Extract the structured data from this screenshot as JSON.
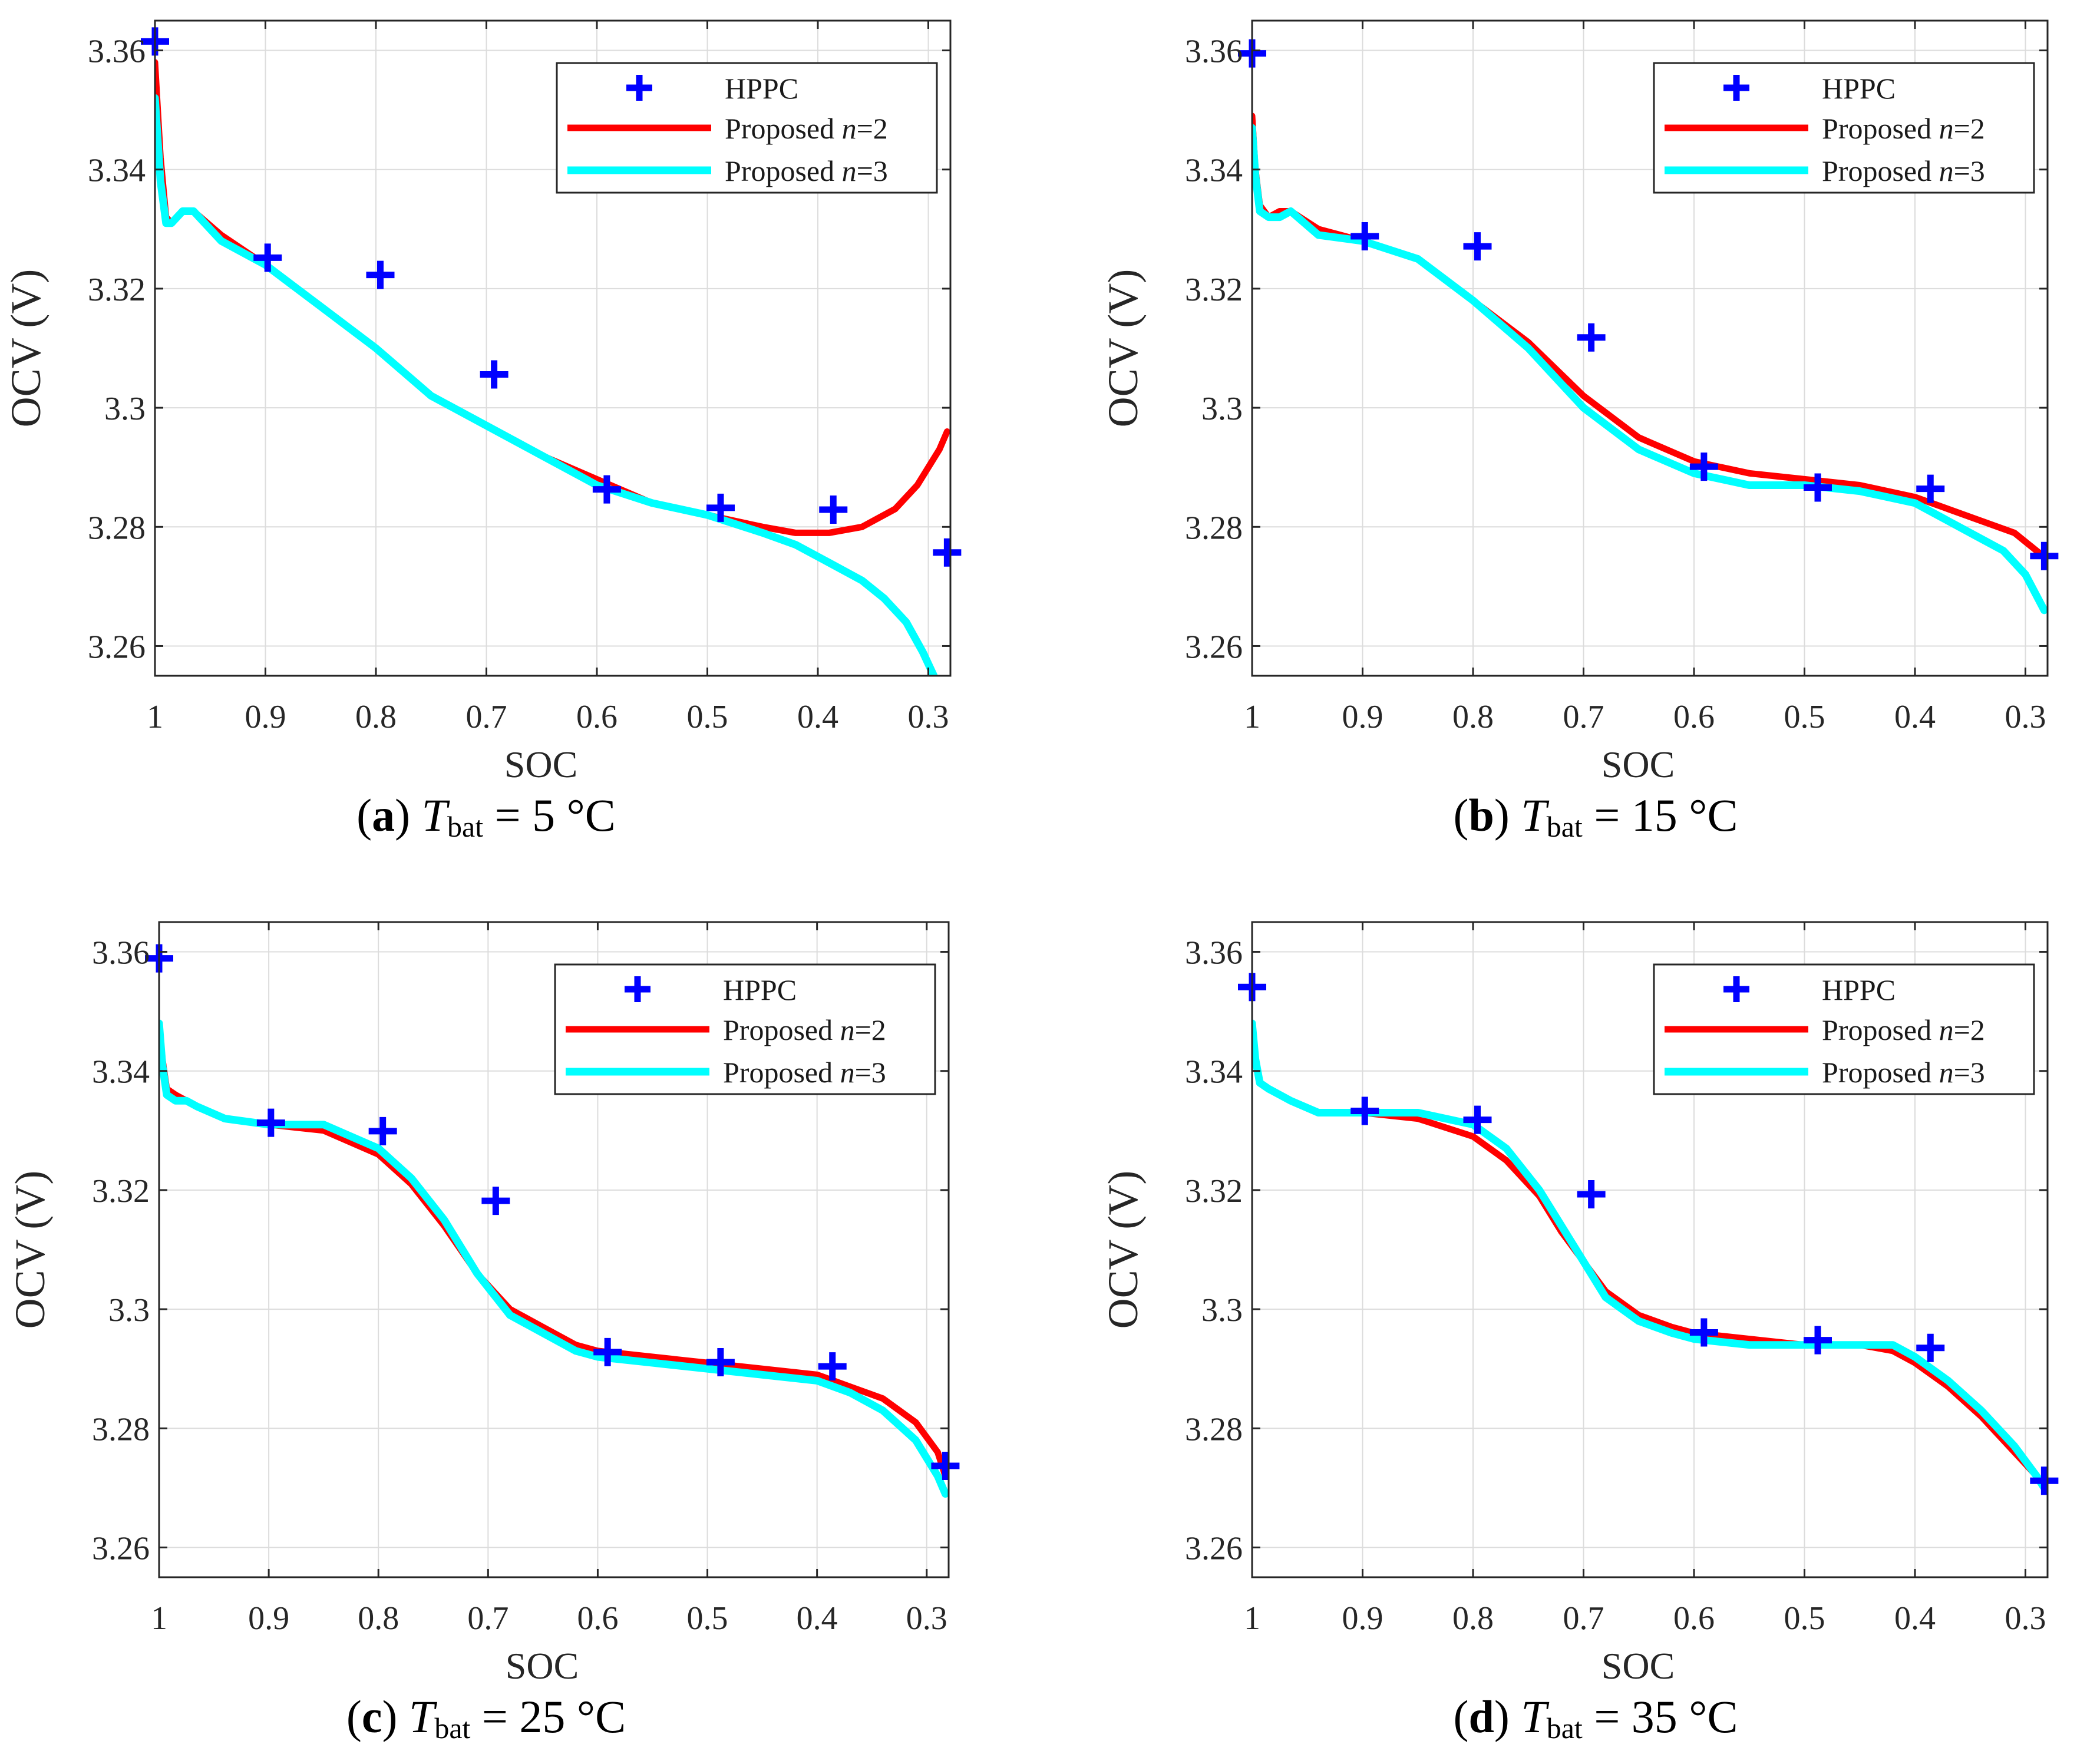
{
  "figure": {
    "domain": "Chart"
  },
  "colors": {
    "hppc": "#0000ff",
    "n2": "#ff0000",
    "n3": "#00ffff",
    "grid": "#dcdcdc",
    "axis": "#262626"
  },
  "chart_data": [
    {
      "type": "line",
      "id": "a",
      "caption": {
        "letter": "a",
        "var": "T",
        "sub": "bat",
        "rest": "= 5 °C"
      },
      "xlabel": "SOC",
      "ylabel": "OCV (V)",
      "xlim": [
        1.0,
        0.28
      ],
      "ylim": [
        3.255,
        3.365
      ],
      "xticks": [
        1,
        0.9,
        0.8,
        0.7,
        0.6,
        0.5,
        0.4,
        0.3
      ],
      "xtick_labels": [
        "1",
        "0.9",
        "0.8",
        "0.7",
        "0.6",
        "0.5",
        "0.4",
        "0.3"
      ],
      "yticks": [
        3.26,
        3.28,
        3.3,
        3.32,
        3.34,
        3.36
      ],
      "ytick_labels": [
        "3.26",
        "3.28",
        "3.3",
        "3.32",
        "3.34",
        "3.36"
      ],
      "legend": {
        "position": "top-right",
        "entries": [
          "HPPC",
          "Proposed n=2",
          "Proposed n=3"
        ]
      },
      "series": [
        {
          "name": "HPPC",
          "kind": "marker",
          "color": "#0000ff",
          "x": [
            1.0,
            0.898,
            0.796,
            0.693,
            0.591,
            0.488,
            0.386,
            0.283
          ],
          "y": [
            3.3615,
            3.3252,
            3.3223,
            3.3056,
            3.2863,
            3.2832,
            3.2829,
            3.2757
          ]
        },
        {
          "name": "Proposed n=2",
          "kind": "line",
          "color": "#ff0000",
          "x": [
            1.0,
            0.995,
            0.99,
            0.985,
            0.975,
            0.965,
            0.94,
            0.9,
            0.85,
            0.8,
            0.75,
            0.7,
            0.65,
            0.6,
            0.55,
            0.5,
            0.45,
            0.42,
            0.39,
            0.36,
            0.33,
            0.31,
            0.29,
            0.283
          ],
          "y": [
            3.358,
            3.342,
            3.332,
            3.331,
            3.333,
            3.333,
            3.329,
            3.324,
            3.317,
            3.31,
            3.302,
            3.297,
            3.292,
            3.288,
            3.284,
            3.282,
            3.28,
            3.279,
            3.279,
            3.28,
            3.283,
            3.287,
            3.293,
            3.296
          ]
        },
        {
          "name": "Proposed n=3",
          "kind": "line",
          "color": "#00ffff",
          "x": [
            1.0,
            0.995,
            0.99,
            0.985,
            0.975,
            0.965,
            0.94,
            0.9,
            0.85,
            0.8,
            0.75,
            0.7,
            0.65,
            0.6,
            0.55,
            0.5,
            0.45,
            0.42,
            0.39,
            0.36,
            0.34,
            0.32,
            0.305,
            0.295
          ],
          "y": [
            3.352,
            3.338,
            3.331,
            3.331,
            3.333,
            3.333,
            3.328,
            3.324,
            3.317,
            3.31,
            3.302,
            3.297,
            3.292,
            3.287,
            3.284,
            3.282,
            3.279,
            3.277,
            3.274,
            3.271,
            3.268,
            3.264,
            3.259,
            3.255
          ]
        }
      ]
    },
    {
      "type": "line",
      "id": "b",
      "caption": {
        "letter": "b",
        "var": "T",
        "sub": "bat",
        "rest": "= 15 °C"
      },
      "xlabel": "SOC",
      "ylabel": "OCV (V)",
      "xlim": [
        1.0,
        0.28
      ],
      "ylim": [
        3.255,
        3.365
      ],
      "xticks": [
        1,
        0.9,
        0.8,
        0.7,
        0.6,
        0.5,
        0.4,
        0.3
      ],
      "xtick_labels": [
        "1",
        "0.9",
        "0.8",
        "0.7",
        "0.6",
        "0.5",
        "0.4",
        "0.3"
      ],
      "yticks": [
        3.26,
        3.28,
        3.3,
        3.32,
        3.34,
        3.36
      ],
      "ytick_labels": [
        "3.26",
        "3.28",
        "3.3",
        "3.32",
        "3.34",
        "3.36"
      ],
      "legend": {
        "position": "top-right",
        "entries": [
          "HPPC",
          "Proposed n=2",
          "Proposed n=3"
        ]
      },
      "series": [
        {
          "name": "HPPC",
          "kind": "marker",
          "color": "#0000ff",
          "x": [
            1.0,
            0.898,
            0.796,
            0.693,
            0.591,
            0.488,
            0.386,
            0.283
          ],
          "y": [
            3.3595,
            3.3288,
            3.3271,
            3.3118,
            3.2901,
            3.2866,
            3.2864,
            3.2751
          ]
        },
        {
          "name": "Proposed n=2",
          "kind": "line",
          "color": "#ff0000",
          "x": [
            1.0,
            0.997,
            0.993,
            0.985,
            0.975,
            0.965,
            0.94,
            0.9,
            0.85,
            0.8,
            0.75,
            0.7,
            0.65,
            0.6,
            0.55,
            0.5,
            0.45,
            0.4,
            0.37,
            0.34,
            0.31,
            0.29,
            0.283
          ],
          "y": [
            3.349,
            3.34,
            3.334,
            3.332,
            3.333,
            3.333,
            3.33,
            3.328,
            3.325,
            3.318,
            3.311,
            3.302,
            3.295,
            3.291,
            3.289,
            3.288,
            3.287,
            3.285,
            3.283,
            3.281,
            3.279,
            3.276,
            3.275
          ]
        },
        {
          "name": "Proposed n=3",
          "kind": "line",
          "color": "#00ffff",
          "x": [
            1.0,
            0.997,
            0.993,
            0.985,
            0.975,
            0.965,
            0.94,
            0.9,
            0.85,
            0.8,
            0.75,
            0.7,
            0.65,
            0.6,
            0.55,
            0.5,
            0.45,
            0.4,
            0.37,
            0.34,
            0.32,
            0.3,
            0.283
          ],
          "y": [
            3.347,
            3.339,
            3.333,
            3.332,
            3.332,
            3.333,
            3.329,
            3.328,
            3.325,
            3.318,
            3.31,
            3.3,
            3.293,
            3.289,
            3.287,
            3.287,
            3.286,
            3.284,
            3.281,
            3.278,
            3.276,
            3.272,
            3.266
          ]
        }
      ]
    },
    {
      "type": "line",
      "id": "c",
      "caption": {
        "letter": "c",
        "var": "T",
        "sub": "bat",
        "rest": "= 25 °C"
      },
      "xlabel": "SOC",
      "ylabel": "OCV (V)",
      "xlim": [
        1.0,
        0.28
      ],
      "ylim": [
        3.255,
        3.365
      ],
      "xticks": [
        1,
        0.9,
        0.8,
        0.7,
        0.6,
        0.5,
        0.4,
        0.3
      ],
      "xtick_labels": [
        "1",
        "0.9",
        "0.8",
        "0.7",
        "0.6",
        "0.5",
        "0.4",
        "0.3"
      ],
      "yticks": [
        3.26,
        3.28,
        3.3,
        3.32,
        3.34,
        3.36
      ],
      "ytick_labels": [
        "3.26",
        "3.28",
        "3.3",
        "3.32",
        "3.34",
        "3.36"
      ],
      "legend": {
        "position": "top-right",
        "entries": [
          "HPPC",
          "Proposed n=2",
          "Proposed n=3"
        ]
      },
      "series": [
        {
          "name": "HPPC",
          "kind": "marker",
          "color": "#0000ff",
          "x": [
            1.0,
            0.898,
            0.796,
            0.693,
            0.591,
            0.488,
            0.386,
            0.283
          ],
          "y": [
            3.3589,
            3.3313,
            3.3299,
            3.3182,
            3.2928,
            3.2911,
            3.2904,
            3.2737
          ]
        },
        {
          "name": "Proposed n=2",
          "kind": "line",
          "color": "#ff0000",
          "x": [
            1.0,
            0.997,
            0.993,
            0.985,
            0.975,
            0.965,
            0.94,
            0.9,
            0.85,
            0.8,
            0.77,
            0.74,
            0.71,
            0.68,
            0.65,
            0.62,
            0.6,
            0.55,
            0.5,
            0.45,
            0.4,
            0.37,
            0.34,
            0.31,
            0.29,
            0.283
          ],
          "y": [
            3.348,
            3.342,
            3.337,
            3.336,
            3.335,
            3.334,
            3.332,
            3.331,
            3.33,
            3.326,
            3.321,
            3.314,
            3.306,
            3.3,
            3.297,
            3.294,
            3.293,
            3.292,
            3.291,
            3.29,
            3.289,
            3.287,
            3.285,
            3.281,
            3.276,
            3.272
          ]
        },
        {
          "name": "Proposed n=3",
          "kind": "line",
          "color": "#00ffff",
          "x": [
            1.0,
            0.997,
            0.993,
            0.985,
            0.975,
            0.965,
            0.94,
            0.9,
            0.85,
            0.8,
            0.77,
            0.74,
            0.71,
            0.68,
            0.65,
            0.62,
            0.6,
            0.55,
            0.5,
            0.45,
            0.4,
            0.37,
            0.34,
            0.31,
            0.29,
            0.283
          ],
          "y": [
            3.348,
            3.341,
            3.336,
            3.335,
            3.335,
            3.334,
            3.332,
            3.331,
            3.331,
            3.327,
            3.322,
            3.315,
            3.306,
            3.299,
            3.296,
            3.293,
            3.292,
            3.291,
            3.29,
            3.289,
            3.288,
            3.286,
            3.283,
            3.278,
            3.272,
            3.269
          ]
        }
      ]
    },
    {
      "type": "line",
      "id": "d",
      "caption": {
        "letter": "d",
        "var": "T",
        "sub": "bat",
        "rest": "= 35 °C"
      },
      "xlabel": "SOC",
      "ylabel": "OCV (V)",
      "xlim": [
        1.0,
        0.28
      ],
      "ylim": [
        3.255,
        3.365
      ],
      "xticks": [
        1,
        0.9,
        0.8,
        0.7,
        0.6,
        0.5,
        0.4,
        0.3
      ],
      "xtick_labels": [
        "1",
        "0.9",
        "0.8",
        "0.7",
        "0.6",
        "0.5",
        "0.4",
        "0.3"
      ],
      "yticks": [
        3.26,
        3.28,
        3.3,
        3.32,
        3.34,
        3.36
      ],
      "ytick_labels": [
        "3.26",
        "3.28",
        "3.3",
        "3.32",
        "3.34",
        "3.36"
      ],
      "legend": {
        "position": "top-right",
        "entries": [
          "HPPC",
          "Proposed n=2",
          "Proposed n=3"
        ]
      },
      "series": [
        {
          "name": "HPPC",
          "kind": "marker",
          "color": "#0000ff",
          "x": [
            1.0,
            0.898,
            0.796,
            0.693,
            0.591,
            0.488,
            0.386,
            0.283
          ],
          "y": [
            3.3541,
            3.3333,
            3.3318,
            3.3193,
            3.2961,
            3.2948,
            3.2935,
            3.2712
          ]
        },
        {
          "name": "Proposed n=2",
          "kind": "line",
          "color": "#ff0000",
          "x": [
            1.0,
            0.997,
            0.993,
            0.985,
            0.975,
            0.965,
            0.94,
            0.9,
            0.85,
            0.8,
            0.77,
            0.74,
            0.72,
            0.7,
            0.68,
            0.65,
            0.62,
            0.6,
            0.55,
            0.5,
            0.45,
            0.42,
            0.4,
            0.37,
            0.34,
            0.31,
            0.29,
            0.283
          ],
          "y": [
            3.348,
            3.342,
            3.338,
            3.337,
            3.336,
            3.335,
            3.333,
            3.333,
            3.332,
            3.329,
            3.325,
            3.319,
            3.313,
            3.308,
            3.303,
            3.299,
            3.297,
            3.296,
            3.295,
            3.294,
            3.294,
            3.293,
            3.291,
            3.287,
            3.282,
            3.276,
            3.272,
            3.27
          ]
        },
        {
          "name": "Proposed n=3",
          "kind": "line",
          "color": "#00ffff",
          "x": [
            1.0,
            0.997,
            0.993,
            0.985,
            0.975,
            0.965,
            0.94,
            0.9,
            0.85,
            0.8,
            0.77,
            0.74,
            0.72,
            0.7,
            0.68,
            0.65,
            0.62,
            0.6,
            0.55,
            0.5,
            0.45,
            0.42,
            0.4,
            0.37,
            0.34,
            0.31,
            0.29,
            0.283
          ],
          "y": [
            3.348,
            3.342,
            3.338,
            3.337,
            3.336,
            3.335,
            3.333,
            3.333,
            3.333,
            3.331,
            3.327,
            3.32,
            3.314,
            3.308,
            3.302,
            3.298,
            3.296,
            3.295,
            3.294,
            3.294,
            3.294,
            3.294,
            3.292,
            3.288,
            3.283,
            3.277,
            3.272,
            3.27
          ]
        }
      ]
    }
  ]
}
